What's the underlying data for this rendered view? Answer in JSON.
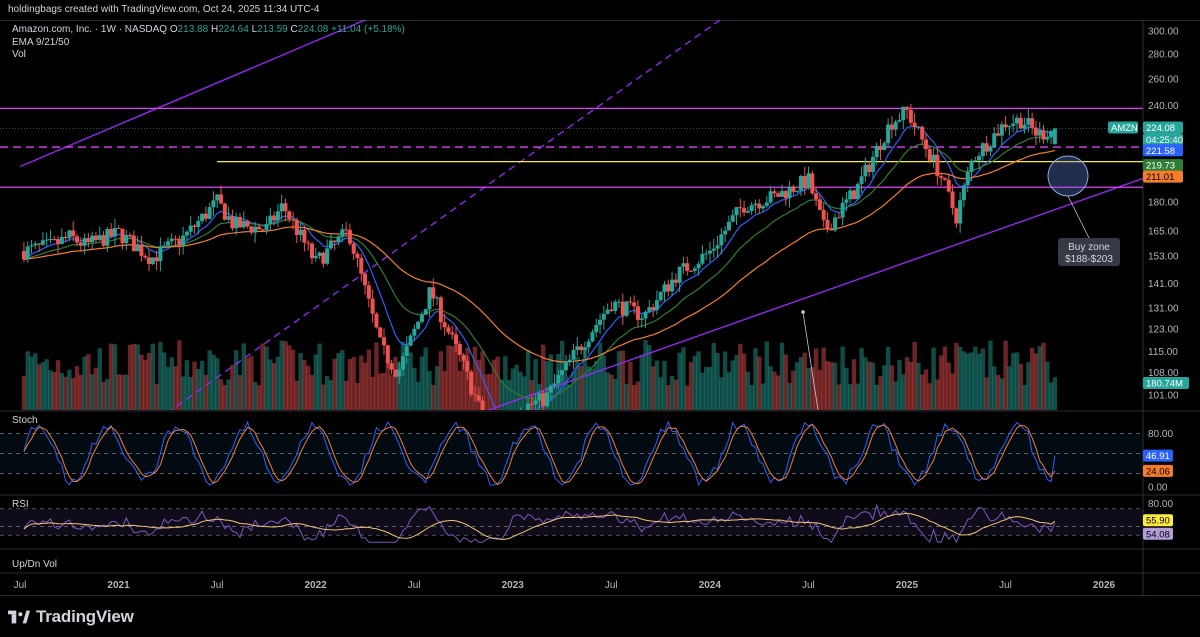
{
  "header": {
    "text": "holdingbags created with TradingView.com, Oct 24, 2025 11:34 UTC-4"
  },
  "legend": {
    "symbol": "Amazon.com, Inc. · 1W · NASDAQ",
    "open_label": "O",
    "open": "213.88",
    "high_label": "H",
    "high": "224.64",
    "low_label": "L",
    "low": "213.59",
    "close_label": "C",
    "close": "224.08",
    "change": "+11.04 (+5.18%)",
    "ema": "EMA 9/21/50",
    "vol": "Vol"
  },
  "footer": {
    "logo_text": "TradingView"
  },
  "colors": {
    "up": "#26a69a",
    "down": "#ef5350",
    "ema9": "#2962ff",
    "ema21": "#2e7d32",
    "ema50": "#f57c2b",
    "purple": "#9c27ff",
    "magenta": "#e040fb",
    "yellow": "#ffeb3b"
  },
  "chart_data": [
    {
      "type": "candlestick",
      "series": [
        {
          "name": "AMZN",
          "last": "224.08"
        },
        {
          "name": "EMA 9",
          "last": "221.58"
        },
        {
          "name": "EMA 21",
          "last": "219.73"
        },
        {
          "name": "EMA 50",
          "last": "211.01"
        },
        {
          "name": "Vol",
          "last": "180.74M"
        }
      ],
      "countdown": "04:25:40",
      "y_ticks": [
        "300.00",
        "280.00",
        "260.00",
        "240.00",
        "180.00",
        "165.00",
        "153.00",
        "141.00",
        "131.00",
        "123.00",
        "115.00",
        "108.00",
        "101.00"
      ],
      "x_ticks": [
        "Jul",
        "2021",
        "Jul",
        "2022",
        "Jul",
        "2023",
        "Jul",
        "2024",
        "Jul",
        "2025",
        "Jul",
        "2026"
      ],
      "y_scale": "log",
      "annotation": {
        "line1": "Buy zone",
        "line2": "$188-$203"
      },
      "close_path": [
        [
          "2020-07",
          155
        ],
        [
          "2020-09",
          158
        ],
        [
          "2020-10",
          162
        ],
        [
          "2020-11",
          158
        ],
        [
          "2021-01",
          164
        ],
        [
          "2021-03",
          152
        ],
        [
          "2021-05",
          162
        ],
        [
          "2021-07",
          180
        ],
        [
          "2021-08",
          168
        ],
        [
          "2021-10",
          166
        ],
        [
          "2021-11",
          178
        ],
        [
          "2022-01",
          150
        ],
        [
          "2022-03",
          165
        ],
        [
          "2022-05",
          116
        ],
        [
          "2022-06",
          108
        ],
        [
          "2022-08",
          138
        ],
        [
          "2022-10",
          110
        ],
        [
          "2022-12",
          85
        ],
        [
          "2023-01",
          96
        ],
        [
          "2023-03",
          100
        ],
        [
          "2023-05",
          116
        ],
        [
          "2023-07",
          133
        ],
        [
          "2023-09",
          128
        ],
        [
          "2023-11",
          145
        ],
        [
          "2024-01",
          155
        ],
        [
          "2024-03",
          178
        ],
        [
          "2024-05",
          183
        ],
        [
          "2024-07",
          192
        ],
        [
          "2024-08",
          165
        ],
        [
          "2024-10",
          188
        ],
        [
          "2024-12",
          228
        ],
        [
          "2025-01",
          236
        ],
        [
          "2025-03",
          196
        ],
        [
          "2025-04",
          172
        ],
        [
          "2025-05",
          205
        ],
        [
          "2025-07",
          228
        ],
        [
          "2025-08",
          230
        ],
        [
          "2025-09",
          220
        ],
        [
          "2025-10",
          224
        ]
      ],
      "levels": [
        {
          "name": "resistance",
          "value": 238
        },
        {
          "name": "support-dashed",
          "value": 212
        },
        {
          "name": "buy-zone-top",
          "value": 203
        },
        {
          "name": "buy-zone-bottom",
          "value": 188
        }
      ]
    },
    {
      "type": "line",
      "name": "Stoch",
      "y_ticks": [
        "80.00",
        "0.00"
      ],
      "series": [
        {
          "name": "%K",
          "last": "46.91"
        },
        {
          "name": "%D",
          "last": "24.06"
        }
      ],
      "ylim": [
        0,
        100
      ]
    },
    {
      "type": "line",
      "name": "RSI",
      "y_ticks": [
        "80.00",
        "40.00"
      ],
      "series": [
        {
          "name": "RSI",
          "last": "54.08"
        },
        {
          "name": "RSI MA",
          "last": "55.90"
        }
      ],
      "ylim": [
        30,
        80
      ]
    },
    {
      "type": "bar",
      "name": "Up/Dn Vol"
    }
  ]
}
